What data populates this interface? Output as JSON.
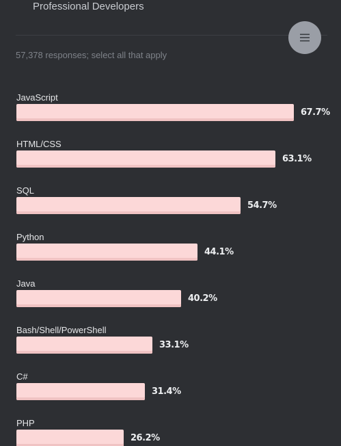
{
  "header": {
    "tab_label": "Professional Developers",
    "menu_icon": "hamburger-menu-icon"
  },
  "survey": {
    "responses_text": "57,378 responses; select all that apply"
  },
  "colors": {
    "background": "#2d2f33",
    "bar_fill": "#fcd8d8",
    "bar_edge": "#f0c3c3",
    "menu_button": "#9a9ea6"
  },
  "chart_data": {
    "type": "bar",
    "orientation": "horizontal",
    "categories": [
      "JavaScript",
      "HTML/CSS",
      "SQL",
      "Python",
      "Java",
      "Bash/Shell/PowerShell",
      "C#",
      "PHP"
    ],
    "values": [
      67.7,
      63.1,
      54.7,
      44.1,
      40.2,
      33.1,
      31.4,
      26.2
    ],
    "value_labels": [
      "67.7%",
      "63.1%",
      "54.7%",
      "44.1%",
      "40.2%",
      "33.1%",
      "31.4%",
      "26.2%"
    ],
    "unit": "%"
  }
}
